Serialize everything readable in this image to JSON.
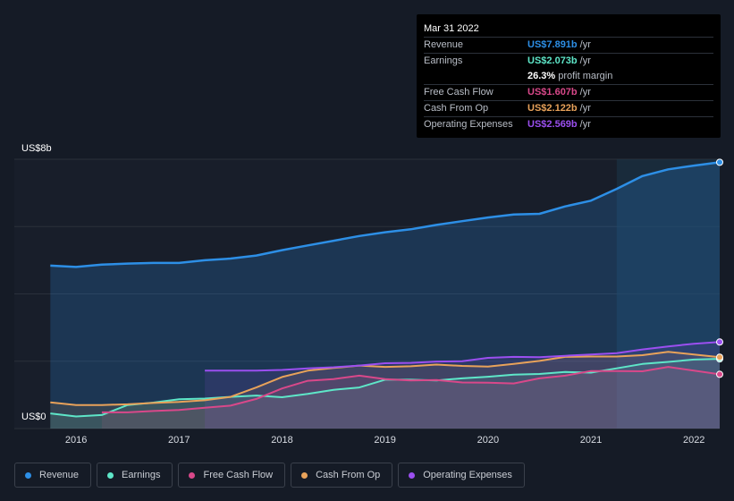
{
  "tooltip": {
    "date": "Mar 31 2022",
    "rows": [
      {
        "label": "Revenue",
        "value": "US$7.891b",
        "unit": "/yr",
        "color": "#2d8fe6"
      },
      {
        "label": "Earnings",
        "value": "US$2.073b",
        "unit": "/yr",
        "color": "#5ee6c8"
      },
      {
        "label": "",
        "value": "26.3%",
        "unit": "profit margin",
        "color": "#ffffff"
      },
      {
        "label": "Free Cash Flow",
        "value": "US$1.607b",
        "unit": "/yr",
        "color": "#d9488a"
      },
      {
        "label": "Cash From Op",
        "value": "US$2.122b",
        "unit": "/yr",
        "color": "#e8a25a"
      },
      {
        "label": "Operating Expenses",
        "value": "US$2.569b",
        "unit": "/yr",
        "color": "#9b4ff0"
      }
    ]
  },
  "axis": {
    "y_top_label": "US$8b",
    "y_bottom_label": "US$0"
  },
  "legend": [
    {
      "label": "Revenue",
      "color": "#2d8fe6"
    },
    {
      "label": "Earnings",
      "color": "#5ee6c8"
    },
    {
      "label": "Free Cash Flow",
      "color": "#d9488a"
    },
    {
      "label": "Cash From Op",
      "color": "#e8a25a"
    },
    {
      "label": "Operating Expenses",
      "color": "#9b4ff0"
    }
  ],
  "chart_data": {
    "type": "line",
    "ylim": [
      0,
      8
    ],
    "xlim": [
      2015.4,
      2022.25
    ],
    "x_ticks": [
      "2016",
      "2017",
      "2018",
      "2019",
      "2020",
      "2021",
      "2022"
    ],
    "x_tick_values": [
      2016,
      2017,
      2018,
      2019,
      2020,
      2021,
      2022
    ],
    "y_unit": "US$ billions",
    "highlight_from": 2021.25,
    "series": [
      {
        "name": "Revenue",
        "color": "#2d8fe6",
        "x": [
          2015.75,
          2016.0,
          2016.25,
          2016.5,
          2016.75,
          2017.0,
          2017.25,
          2017.5,
          2017.75,
          2018.0,
          2018.25,
          2018.5,
          2018.75,
          2019.0,
          2019.25,
          2019.5,
          2019.75,
          2020.0,
          2020.25,
          2020.5,
          2020.75,
          2021.0,
          2021.25,
          2021.5,
          2021.75,
          2022.0,
          2022.25
        ],
        "y": [
          4.84,
          4.8,
          4.87,
          4.9,
          4.92,
          4.92,
          5.0,
          5.05,
          5.14,
          5.3,
          5.44,
          5.58,
          5.72,
          5.83,
          5.92,
          6.05,
          6.16,
          6.27,
          6.36,
          6.38,
          6.6,
          6.77,
          7.12,
          7.5,
          7.7,
          7.81,
          7.91
        ]
      },
      {
        "name": "Earnings",
        "color": "#5ee6c8",
        "x": [
          2015.75,
          2016.0,
          2016.25,
          2016.5,
          2016.75,
          2017.0,
          2017.25,
          2017.5,
          2017.75,
          2018.0,
          2018.25,
          2018.5,
          2018.75,
          2019.0,
          2019.25,
          2019.5,
          2019.75,
          2020.0,
          2020.25,
          2020.5,
          2020.75,
          2021.0,
          2021.25,
          2021.5,
          2021.75,
          2022.0,
          2022.25
        ],
        "y": [
          0.45,
          0.36,
          0.4,
          0.7,
          0.77,
          0.87,
          0.89,
          0.94,
          0.98,
          0.93,
          1.03,
          1.15,
          1.22,
          1.45,
          1.45,
          1.43,
          1.49,
          1.54,
          1.6,
          1.62,
          1.68,
          1.66,
          1.79,
          1.92,
          1.98,
          2.05,
          2.07
        ]
      },
      {
        "name": "Free Cash Flow",
        "color": "#d9488a",
        "x": [
          2016.25,
          2016.5,
          2016.75,
          2017.0,
          2017.25,
          2017.5,
          2017.75,
          2018.0,
          2018.25,
          2018.5,
          2018.75,
          2019.0,
          2019.25,
          2019.5,
          2019.75,
          2020.0,
          2020.25,
          2020.5,
          2020.75,
          2021.0,
          2021.25,
          2021.5,
          2021.75,
          2022.0,
          2022.25
        ],
        "y": [
          0.48,
          0.48,
          0.52,
          0.55,
          0.62,
          0.68,
          0.88,
          1.19,
          1.42,
          1.47,
          1.57,
          1.47,
          1.43,
          1.44,
          1.37,
          1.36,
          1.34,
          1.49,
          1.57,
          1.71,
          1.71,
          1.7,
          1.83,
          1.72,
          1.61
        ]
      },
      {
        "name": "Cash From Op",
        "color": "#e8a25a",
        "x": [
          2015.75,
          2016.0,
          2016.25,
          2016.5,
          2016.75,
          2017.0,
          2017.25,
          2017.5,
          2017.75,
          2018.0,
          2018.25,
          2018.5,
          2018.75,
          2019.0,
          2019.25,
          2019.5,
          2019.75,
          2020.0,
          2020.25,
          2020.5,
          2020.75,
          2021.0,
          2021.25,
          2021.5,
          2021.75,
          2022.0,
          2022.25
        ],
        "y": [
          0.78,
          0.7,
          0.7,
          0.72,
          0.76,
          0.79,
          0.84,
          0.94,
          1.22,
          1.53,
          1.72,
          1.8,
          1.87,
          1.83,
          1.85,
          1.9,
          1.86,
          1.84,
          1.92,
          2.01,
          2.13,
          2.14,
          2.14,
          2.18,
          2.28,
          2.2,
          2.12
        ]
      },
      {
        "name": "Operating Expenses",
        "color": "#9b4ff0",
        "x": [
          2017.25,
          2017.5,
          2017.75,
          2018.0,
          2018.25,
          2018.5,
          2018.75,
          2019.0,
          2019.25,
          2019.5,
          2019.75,
          2020.0,
          2020.25,
          2020.5,
          2020.75,
          2021.0,
          2021.25,
          2021.5,
          2021.75,
          2022.0,
          2022.25
        ],
        "y": [
          1.72,
          1.72,
          1.72,
          1.74,
          1.79,
          1.82,
          1.87,
          1.94,
          1.95,
          1.99,
          2.0,
          2.1,
          2.13,
          2.12,
          2.16,
          2.2,
          2.24,
          2.35,
          2.44,
          2.52,
          2.57
        ]
      }
    ]
  }
}
